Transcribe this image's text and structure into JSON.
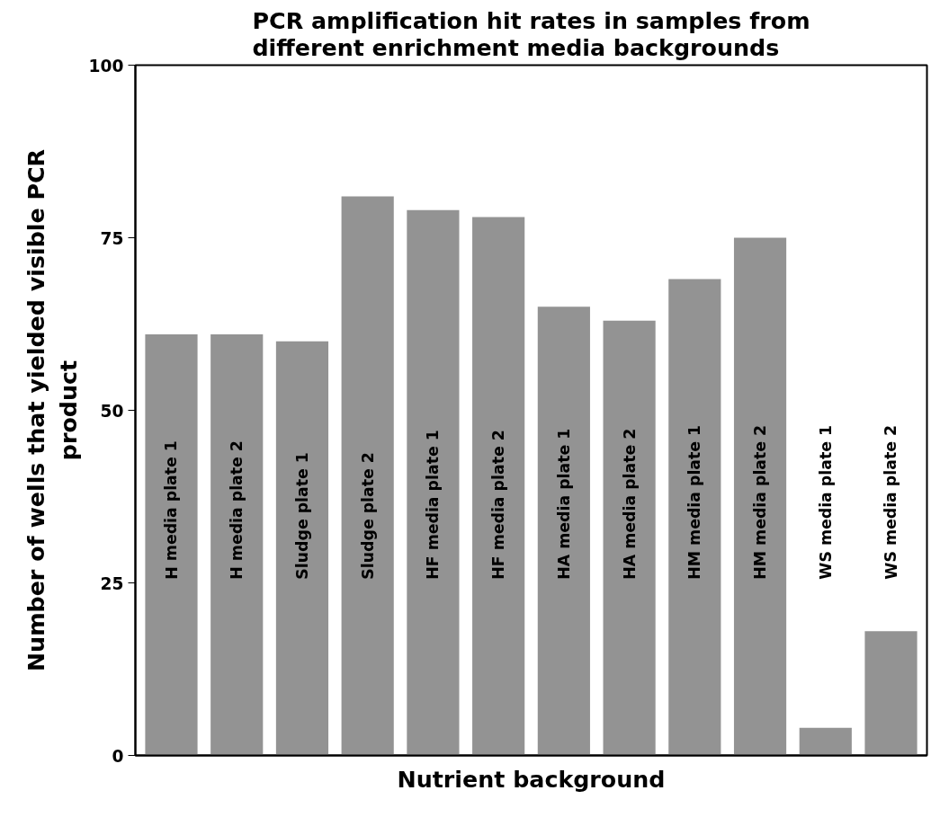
{
  "chart_data": {
    "type": "bar",
    "title": "PCR amplification hit rates in samples from different enrichment media backgrounds",
    "xlabel": "Nutrient background",
    "ylabel": "Number of wells that yielded visible PCR product",
    "categories": [
      "H media plate 1",
      "H media plate 2",
      "Sludge plate 1",
      "Sludge plate 2",
      "HF media plate 1",
      "HF media plate 2",
      "HA media plate 1",
      "HA media plate 2",
      "HM media plate 1",
      "HM media plate 2",
      "WS media plate 1",
      "WS media plate 2"
    ],
    "values": [
      61,
      61,
      60,
      81,
      79,
      78,
      65,
      63,
      69,
      75,
      4,
      18
    ],
    "color": "#939393",
    "ylim": [
      0,
      100
    ],
    "yticks": [
      0,
      25,
      50,
      75,
      100
    ],
    "grid": false,
    "tick_labels": "y"
  }
}
